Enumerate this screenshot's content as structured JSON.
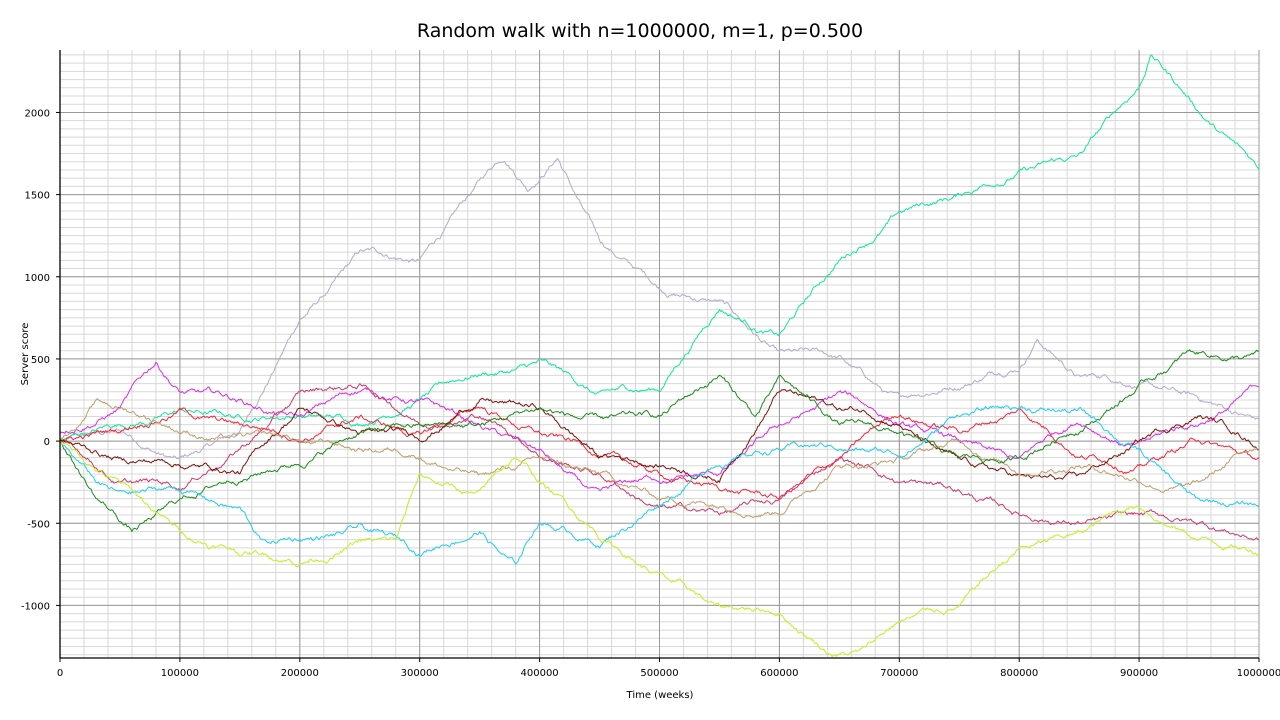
{
  "chart_data": {
    "type": "line",
    "title": "Random walk with n=1000000, m=1, p=0.500",
    "xlabel": "Time (weeks)",
    "ylabel": "Server score",
    "xlim": [
      0,
      1000000
    ],
    "ylim": [
      -1320,
      2380
    ],
    "grid": true,
    "minor_grid": true,
    "legend": "none",
    "xticks": [
      "0",
      "100000",
      "200000",
      "300000",
      "400000",
      "500000",
      "600000",
      "700000",
      "800000",
      "900000",
      "1000000"
    ],
    "yticks": [
      "-1000",
      "-500",
      "0",
      "500",
      "1000",
      "1500",
      "2000"
    ],
    "series": [
      {
        "color": "#b3aacb",
        "x": [
          0,
          50000,
          100000,
          150000,
          200000,
          250000,
          300000,
          370000,
          390000,
          415000,
          450000,
          500000,
          550000,
          600000,
          650000,
          700000,
          750000,
          800000,
          815000,
          850000,
          900000,
          950000,
          1000000
        ],
        "y": [
          0,
          60,
          -100,
          60,
          735,
          1160,
          1100,
          1700,
          1520,
          1720,
          1220,
          920,
          860,
          550,
          520,
          280,
          310,
          430,
          620,
          400,
          340,
          250,
          130
        ]
      },
      {
        "color": "#0fe699",
        "x": [
          0,
          50000,
          100000,
          150000,
          200000,
          250000,
          300000,
          350000,
          400000,
          450000,
          500000,
          550000,
          600000,
          650000,
          700000,
          750000,
          800000,
          850000,
          900000,
          910000,
          950000,
          1000000
        ],
        "y": [
          0,
          100,
          200,
          150,
          150,
          100,
          250,
          400,
          500,
          300,
          300,
          800,
          650,
          1100,
          1400,
          1500,
          1650,
          1750,
          2150,
          2350,
          2000,
          1650
        ]
      },
      {
        "color": "#d62ee6",
        "x": [
          0,
          50000,
          80000,
          100000,
          150000,
          200000,
          250000,
          300000,
          350000,
          400000,
          450000,
          500000,
          550000,
          600000,
          650000,
          700000,
          750000,
          800000,
          850000,
          900000,
          950000,
          1000000
        ],
        "y": [
          50,
          200,
          480,
          300,
          250,
          150,
          300,
          250,
          100,
          -50,
          -300,
          -250,
          -200,
          100,
          300,
          100,
          0,
          -100,
          100,
          0,
          100,
          330
        ]
      },
      {
        "color": "#f2283c",
        "x": [
          0,
          50000,
          100000,
          150000,
          200000,
          250000,
          300000,
          350000,
          400000,
          450000,
          500000,
          550000,
          600000,
          650000,
          700000,
          750000,
          800000,
          850000,
          900000,
          950000,
          1000000
        ],
        "y": [
          0,
          50,
          200,
          100,
          0,
          150,
          50,
          200,
          50,
          -100,
          -200,
          -300,
          -350,
          -100,
          150,
          50,
          200,
          -100,
          -150,
          0,
          -100
        ]
      },
      {
        "color": "#cc3a6a",
        "x": [
          0,
          50000,
          100000,
          150000,
          200000,
          250000,
          300000,
          350000,
          400000,
          450000,
          500000,
          550000,
          600000,
          650000,
          700000,
          750000,
          800000,
          850000,
          900000,
          950000,
          1000000
        ],
        "y": [
          0,
          -250,
          -300,
          -50,
          300,
          350,
          100,
          150,
          -100,
          -200,
          -400,
          -450,
          -350,
          -100,
          -250,
          -300,
          -450,
          -500,
          -450,
          -500,
          -600
        ]
      },
      {
        "color": "#7c140c",
        "x": [
          0,
          50000,
          100000,
          150000,
          200000,
          250000,
          300000,
          350000,
          400000,
          450000,
          500000,
          550000,
          600000,
          650000,
          700000,
          750000,
          800000,
          850000,
          900000,
          950000,
          1000000
        ],
        "y": [
          0,
          -100,
          -150,
          -200,
          200,
          50,
          0,
          250,
          200,
          -100,
          -150,
          -250,
          300,
          200,
          100,
          -100,
          -200,
          -200,
          0,
          150,
          -50
        ]
      },
      {
        "color": "#bda06c",
        "x": [
          0,
          30000,
          50000,
          100000,
          150000,
          200000,
          250000,
          300000,
          350000,
          400000,
          450000,
          500000,
          550000,
          600000,
          650000,
          700000,
          750000,
          800000,
          850000,
          900000,
          950000,
          1000000
        ],
        "y": [
          0,
          250,
          200,
          50,
          50,
          0,
          -50,
          -100,
          -200,
          -100,
          -200,
          -350,
          -400,
          -450,
          -150,
          -100,
          0,
          -200,
          -150,
          -250,
          -250,
          -50
        ]
      },
      {
        "color": "#1a8c1a",
        "x": [
          0,
          30000,
          60000,
          100000,
          150000,
          200000,
          250000,
          300000,
          350000,
          400000,
          450000,
          500000,
          550000,
          580000,
          600000,
          650000,
          700000,
          750000,
          800000,
          850000,
          900000,
          940000,
          1000000
        ],
        "y": [
          0,
          -350,
          -550,
          -350,
          -250,
          -150,
          50,
          100,
          100,
          200,
          150,
          150,
          400,
          150,
          400,
          100,
          50,
          -100,
          -100,
          50,
          350,
          550,
          550
        ]
      },
      {
        "color": "#1ecdf0",
        "x": [
          0,
          30000,
          50000,
          100000,
          150000,
          170000,
          200000,
          250000,
          300000,
          350000,
          380000,
          400000,
          450000,
          500000,
          550000,
          600000,
          650000,
          700000,
          750000,
          800000,
          850000,
          900000,
          950000,
          1000000
        ],
        "y": [
          0,
          -250,
          -300,
          -300,
          -400,
          -600,
          -600,
          -500,
          -700,
          -550,
          -750,
          -500,
          -650,
          -400,
          -150,
          -50,
          -50,
          -100,
          150,
          200,
          200,
          -50,
          -350,
          -400
        ]
      },
      {
        "color": "#bdf21e",
        "x": [
          0,
          50000,
          100000,
          150000,
          200000,
          250000,
          280000,
          300000,
          350000,
          380000,
          400000,
          450000,
          500000,
          550000,
          600000,
          640000,
          670000,
          700000,
          750000,
          800000,
          850000,
          900000,
          950000,
          1000000
        ],
        "y": [
          0,
          -250,
          -550,
          -700,
          -750,
          -600,
          -600,
          -200,
          -300,
          -100,
          -250,
          -600,
          -800,
          -1000,
          -1050,
          -1300,
          -1250,
          -1100,
          -1000,
          -650,
          -550,
          -400,
          -600,
          -700
        ]
      }
    ]
  }
}
